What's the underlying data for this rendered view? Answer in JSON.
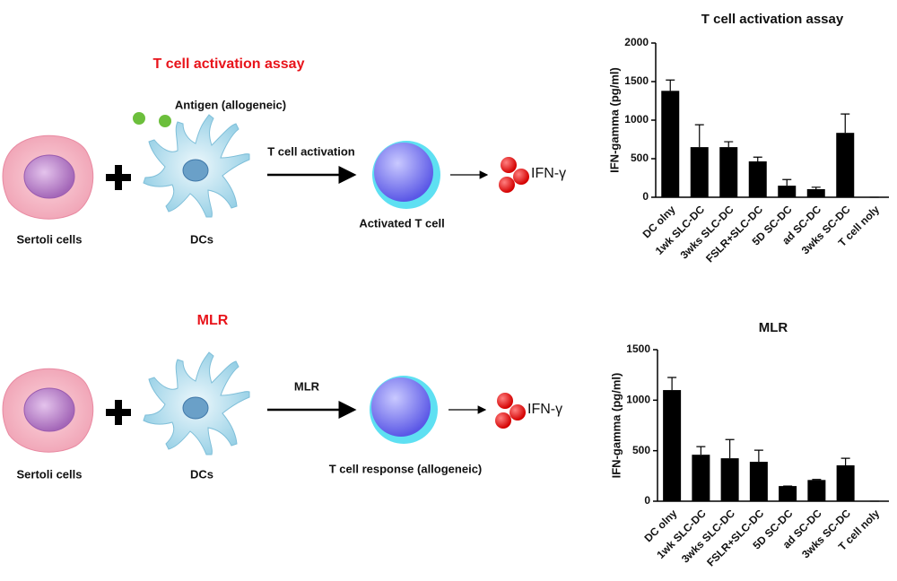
{
  "diagram": {
    "top": {
      "title": "T cell activation assay",
      "antigen": "Antigen (allogeneic)",
      "arrow": "T cell activation",
      "sertoli": "Sertoli cells",
      "dc": "DCs",
      "tcell": "Activated T cell",
      "cytokine": "IFN-γ"
    },
    "bottom": {
      "title": "MLR",
      "arrow": "MLR",
      "sertoli": "Sertoli cells",
      "dc": "DCs",
      "tcell": "T cell response (allogeneic)",
      "cytokine": "IFN-γ"
    }
  },
  "chart_data": [
    {
      "type": "bar",
      "title": "T cell activation assay",
      "y_label": "IFN-gamma (pg/ml)",
      "categories": [
        "DC olny",
        "1wk SLC-DC",
        "3wks SLC-DC",
        "FSLR+SLC-DC",
        "5D SC-DC",
        "ad SC-DC",
        "3wks SC-DC",
        "T cell noly"
      ],
      "values": [
        1380,
        650,
        650,
        465,
        150,
        105,
        835,
        0
      ],
      "errors": [
        140,
        290,
        70,
        55,
        80,
        25,
        245,
        0
      ],
      "color": "#000000",
      "ylim": [
        0,
        2000
      ],
      "yticks": [
        0,
        500,
        1000,
        1500,
        2000
      ]
    },
    {
      "type": "bar",
      "title": "MLR",
      "y_label": "IFN-gamma (pg/ml)",
      "categories": [
        "DC olny",
        "1wk SLC-DC",
        "3wks SLC-DC",
        "FSLR+SLC-DC",
        "5D SC-DC",
        "ad SC-DC",
        "3wks SC-DC",
        "T cell noly"
      ],
      "values": [
        1100,
        460,
        425,
        390,
        150,
        210,
        355,
        0
      ],
      "errors": [
        125,
        80,
        185,
        115,
        0,
        5,
        70,
        0
      ],
      "color": "#000000",
      "ylim": [
        0,
        1500
      ],
      "yticks": [
        0,
        500,
        1000,
        1500
      ]
    }
  ]
}
